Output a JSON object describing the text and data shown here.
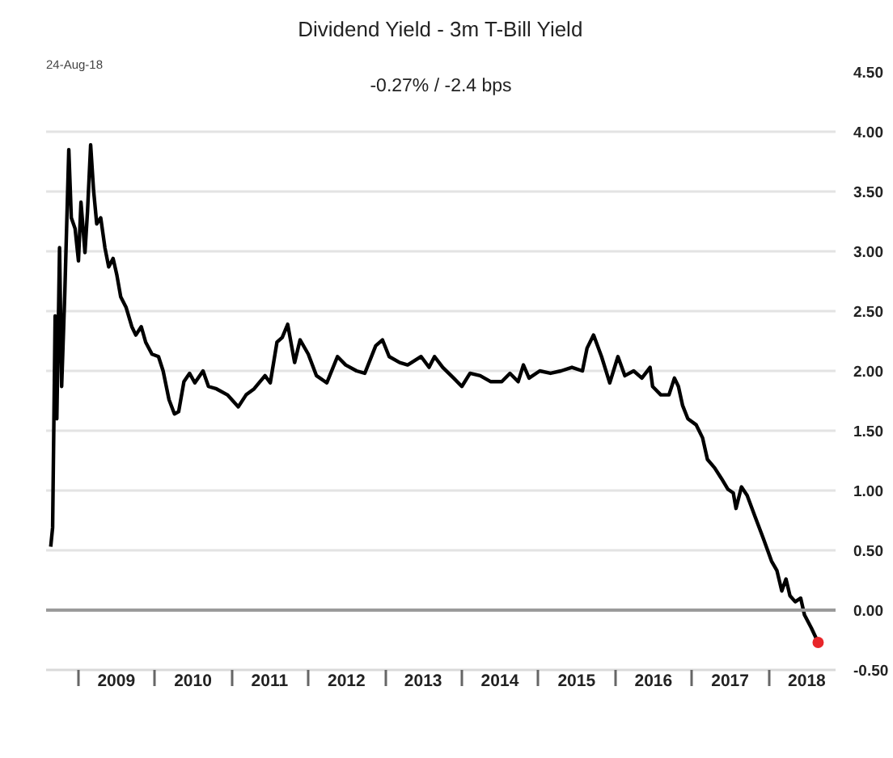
{
  "chart_data": {
    "type": "line",
    "title": "Dividend Yield - 3m T-Bill Yield",
    "subtitle": "-0.27% / -2.4 bps",
    "annotations": [
      "24-Aug-18"
    ],
    "x": [
      "2008-08-23",
      "2008-09-01",
      "2008-09-13",
      "2008-09-21",
      "2008-10-04",
      "2008-10-14",
      "2008-10-29",
      "2008-11-17",
      "2008-11-29",
      "2008-12-17",
      "2009-01-02",
      "2009-01-14",
      "2009-02-02",
      "2009-02-14",
      "2009-03-01",
      "2009-03-15",
      "2009-03-30",
      "2009-04-18",
      "2009-05-08",
      "2009-05-26",
      "2009-06-16",
      "2009-07-04",
      "2009-07-22",
      "2009-08-17",
      "2009-09-13",
      "2009-10-02",
      "2009-10-28",
      "2009-11-18",
      "2009-12-18",
      "2010-01-18",
      "2010-02-09",
      "2010-03-09",
      "2010-04-04",
      "2010-04-24",
      "2010-05-19",
      "2010-06-15",
      "2010-07-10",
      "2010-08-18",
      "2010-09-13",
      "2010-10-21",
      "2010-12-12",
      "2011-02-02",
      "2011-03-11",
      "2011-04-18",
      "2011-06-09",
      "2011-07-04",
      "2011-08-05",
      "2011-08-30",
      "2011-09-25",
      "2011-10-28",
      "2011-11-23",
      "2012-01-01",
      "2012-02-09",
      "2012-03-29",
      "2012-05-19",
      "2012-06-27",
      "2012-08-18",
      "2012-09-26",
      "2012-11-17",
      "2012-12-19",
      "2013-01-20",
      "2013-03-11",
      "2013-04-18",
      "2013-06-21",
      "2013-07-29",
      "2013-08-24",
      "2013-10-02",
      "2013-11-23",
      "2014-01-01",
      "2014-02-09",
      "2014-03-29",
      "2014-05-19",
      "2014-07-10",
      "2014-08-18",
      "2014-09-26",
      "2014-10-21",
      "2014-11-17",
      "2015-01-07",
      "2015-02-27",
      "2015-04-18",
      "2015-06-09",
      "2015-07-29",
      "2015-08-20",
      "2015-09-20",
      "2015-10-28",
      "2015-12-06",
      "2016-01-14",
      "2016-02-16",
      "2016-03-29",
      "2016-05-07",
      "2016-06-15",
      "2016-06-27",
      "2016-08-05",
      "2016-09-13",
      "2016-10-09",
      "2016-10-28",
      "2016-11-17",
      "2016-12-12",
      "2017-01-20",
      "2017-02-20",
      "2017-03-15",
      "2017-04-18",
      "2017-05-21",
      "2017-06-21",
      "2017-07-16",
      "2017-07-29",
      "2017-08-24",
      "2017-09-20",
      "2017-10-28",
      "2017-12-06",
      "2018-01-14",
      "2018-02-09",
      "2018-03-04",
      "2018-03-24",
      "2018-04-12",
      "2018-05-07",
      "2018-06-02",
      "2018-06-20",
      "2018-07-23",
      "2018-08-24"
    ],
    "series": [
      {
        "color": "#000000",
        "values": [
          0.53,
          0.69,
          2.46,
          1.6,
          3.03,
          1.87,
          2.65,
          3.85,
          3.28,
          3.19,
          2.92,
          3.41,
          2.99,
          3.33,
          3.89,
          3.51,
          3.23,
          3.28,
          3.03,
          2.87,
          2.94,
          2.8,
          2.62,
          2.53,
          2.37,
          2.3,
          2.37,
          2.24,
          2.14,
          2.12,
          2.0,
          1.76,
          1.64,
          1.66,
          1.91,
          1.98,
          1.9,
          2.0,
          1.87,
          1.85,
          1.8,
          1.7,
          1.8,
          1.85,
          1.96,
          1.9,
          2.24,
          2.28,
          2.39,
          2.07,
          2.26,
          2.14,
          1.96,
          1.9,
          2.12,
          2.05,
          2.0,
          1.98,
          2.21,
          2.26,
          2.12,
          2.07,
          2.05,
          2.12,
          2.03,
          2.12,
          2.03,
          1.94,
          1.87,
          1.98,
          1.96,
          1.91,
          1.91,
          1.98,
          1.91,
          2.05,
          1.94,
          2.0,
          1.98,
          2.0,
          2.03,
          2.0,
          2.19,
          2.3,
          2.12,
          1.9,
          2.12,
          1.96,
          2.0,
          1.94,
          2.03,
          1.87,
          1.8,
          1.8,
          1.94,
          1.87,
          1.71,
          1.6,
          1.55,
          1.44,
          1.26,
          1.19,
          1.1,
          1.01,
          0.98,
          0.85,
          1.03,
          0.96,
          0.78,
          0.6,
          0.41,
          0.33,
          0.16,
          0.26,
          0.12,
          0.07,
          0.1,
          -0.04,
          -0.15,
          -0.27
        ]
      },
      {
        "type": "scatter",
        "color": "#e8262a",
        "marker": "circle",
        "x": [
          "2018-08-24"
        ],
        "values": [
          -0.27
        ]
      }
    ],
    "xlim": [
      "2008-08-01",
      "2018-11-15"
    ],
    "xticks": [
      {
        "value": "2009-01-01",
        "label": null
      },
      {
        "value": "2009-07-01",
        "label": "2009"
      },
      {
        "value": "2010-01-01",
        "label": null
      },
      {
        "value": "2010-07-01",
        "label": "2010"
      },
      {
        "value": "2011-01-01",
        "label": null
      },
      {
        "value": "2011-07-01",
        "label": "2011"
      },
      {
        "value": "2012-01-01",
        "label": null
      },
      {
        "value": "2012-07-01",
        "label": "2012"
      },
      {
        "value": "2013-01-01",
        "label": null
      },
      {
        "value": "2013-07-01",
        "label": "2013"
      },
      {
        "value": "2014-01-01",
        "label": null
      },
      {
        "value": "2014-07-01",
        "label": "2014"
      },
      {
        "value": "2015-01-01",
        "label": null
      },
      {
        "value": "2015-07-01",
        "label": "2015"
      },
      {
        "value": "2016-01-01",
        "label": null
      },
      {
        "value": "2016-07-01",
        "label": "2016"
      },
      {
        "value": "2017-01-01",
        "label": null
      },
      {
        "value": "2017-07-01",
        "label": "2017"
      },
      {
        "value": "2018-01-01",
        "label": null
      },
      {
        "value": "2018-07-01",
        "label": "2018"
      }
    ],
    "ylim": [
      -0.5,
      4.5
    ],
    "yticks": [
      {
        "value": -0.5,
        "label": "-0.50"
      },
      {
        "value": 0,
        "label": "0.00"
      },
      {
        "value": 0.5,
        "label": "0.50"
      },
      {
        "value": 1,
        "label": "1.00"
      },
      {
        "value": 1.5,
        "label": "1.50"
      },
      {
        "value": 2,
        "label": "2.00"
      },
      {
        "value": 2.5,
        "label": "2.50"
      },
      {
        "value": 3,
        "label": "3.00"
      },
      {
        "value": 3.5,
        "label": "3.50"
      },
      {
        "value": 4,
        "label": "4.00"
      },
      {
        "value": 4.5,
        "label": "4.50"
      }
    ],
    "grid": "y",
    "ref_lines": [
      {
        "axis": "y",
        "value": 0,
        "color": "#9a9a9a"
      }
    ]
  }
}
